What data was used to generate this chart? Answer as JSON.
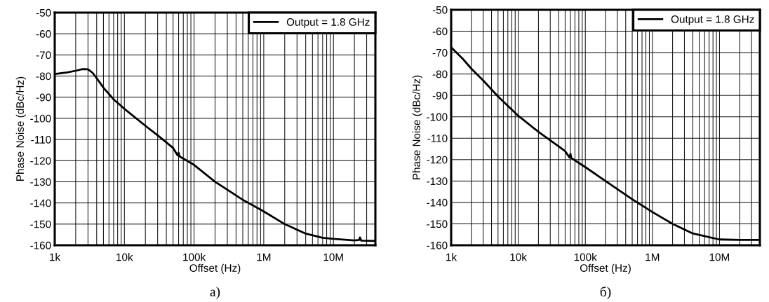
{
  "chart_data": [
    {
      "type": "line",
      "xlabel": "Offset (Hz)",
      "ylabel": "Phase Noise (dBc/Hz)",
      "annotations": [
        "а)"
      ],
      "log": "x",
      "grid": true,
      "legend": "top right",
      "line_style": "solid",
      "marker": "none",
      "xlim": [
        1000,
        40000000
      ],
      "xticks": [
        {
          "value": 1000,
          "label": "1k"
        },
        {
          "value": 10000,
          "label": "10k"
        },
        {
          "value": 100000,
          "label": "100k"
        },
        {
          "value": 1000000,
          "label": "1M"
        },
        {
          "value": 10000000,
          "label": "10M"
        }
      ],
      "ylim": [
        -160,
        -50
      ],
      "yticks": [
        -160,
        -150,
        -140,
        -130,
        -120,
        -110,
        -100,
        -90,
        -80,
        -70,
        -60,
        -50
      ],
      "series": [
        {
          "name": "Output = 1.8 GHz",
          "color": "#000000",
          "x": [
            1000,
            1500,
            2000,
            2500,
            3000,
            3500,
            4000,
            5000,
            7000,
            10000,
            20000,
            30000,
            50000,
            58000,
            60000,
            62000,
            100000,
            200000,
            500000,
            1000000,
            2000000,
            4000000,
            7000000,
            10000000,
            20000000,
            23500000,
            24000000,
            25000000,
            40000000
          ],
          "values": [
            -79,
            -78.3,
            -77.5,
            -76.7,
            -76.8,
            -78.5,
            -81,
            -85.5,
            -91,
            -95.5,
            -103.5,
            -108,
            -114,
            -117.5,
            -116.3,
            -118,
            -122,
            -130,
            -138.5,
            -144,
            -150,
            -154.5,
            -156.5,
            -157,
            -157.7,
            -157.5,
            -156.3,
            -157.8,
            -158
          ]
        }
      ]
    },
    {
      "type": "line",
      "xlabel": "Offset (Hz)",
      "ylabel": "Phase Noise (dBc/Hz)",
      "annotations": [
        "б)"
      ],
      "log": "x",
      "grid": true,
      "legend": "top right",
      "line_style": "solid",
      "marker": "none",
      "xlim": [
        1000,
        40000000
      ],
      "xticks": [
        {
          "value": 1000,
          "label": "1k"
        },
        {
          "value": 10000,
          "label": "10k"
        },
        {
          "value": 100000,
          "label": "100k"
        },
        {
          "value": 1000000,
          "label": "1M"
        },
        {
          "value": 10000000,
          "label": "10M"
        }
      ],
      "ylim": [
        -160,
        -50
      ],
      "yticks": [
        -160,
        -150,
        -140,
        -130,
        -120,
        -110,
        -100,
        -90,
        -80,
        -70,
        -60,
        -50
      ],
      "series": [
        {
          "name": "Output = 1.8 GHz",
          "color": "#000000",
          "x": [
            1000,
            1500,
            2000,
            3000,
            5000,
            10000,
            20000,
            50000,
            58000,
            60000,
            62000,
            100000,
            200000,
            500000,
            1000000,
            2000000,
            4000000,
            10000000,
            20000000,
            40000000
          ],
          "values": [
            -67.5,
            -73,
            -77.5,
            -83,
            -90.5,
            -99.5,
            -107,
            -116,
            -119,
            -117.3,
            -119.3,
            -123.5,
            -130,
            -138.5,
            -144.5,
            -150,
            -154.5,
            -157.3,
            -157.5,
            -157.5
          ]
        }
      ]
    }
  ]
}
